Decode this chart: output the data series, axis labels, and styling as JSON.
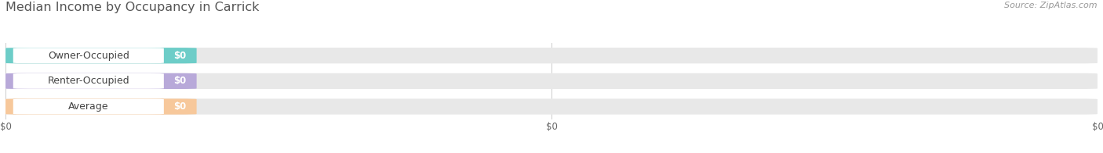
{
  "title": "Median Income by Occupancy in Carrick",
  "source_text": "Source: ZipAtlas.com",
  "categories": [
    "Owner-Occupied",
    "Renter-Occupied",
    "Average"
  ],
  "values": [
    0,
    0,
    0
  ],
  "bar_colors": [
    "#6dcdc8",
    "#b8a9d9",
    "#f7c89b"
  ],
  "bar_bg_color": "#e8e8e8",
  "bg_color": "#ffffff",
  "title_color": "#555555",
  "title_fontsize": 11.5,
  "source_fontsize": 8,
  "label_fontsize": 9,
  "value_fontsize": 8.5,
  "bar_height": 0.62,
  "figsize": [
    14.06,
    1.96
  ],
  "dpi": 100,
  "x_tick_labels": [
    "$0",
    "$0",
    "$0"
  ],
  "x_tick_positions": [
    0.0,
    0.5,
    1.0
  ]
}
